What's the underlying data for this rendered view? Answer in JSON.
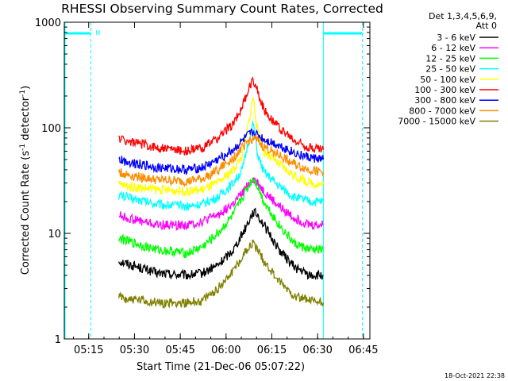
{
  "chart_data": {
    "type": "line",
    "title": "RHESSI Observing Summary Count Rates, Corrected",
    "xlabel": "Start Time (21-Dec-06 05:07:22)",
    "ylabel_main": "Corrected Count Rate (s",
    "ylabel_sup1": "-1",
    "ylabel_mid": " detector",
    "ylabel_sup2": "-1",
    "ylabel_end": ")",
    "yscale": "log",
    "ylim": [
      1,
      1000
    ],
    "xlim": [
      "05:07",
      "06:47"
    ],
    "xlim_minutes": [
      -0.37,
      99.75
    ],
    "x_ticks": [
      {
        "minute": 7.63,
        "label": "05:15"
      },
      {
        "minute": 22.63,
        "label": "05:30"
      },
      {
        "minute": 37.63,
        "label": "05:45"
      },
      {
        "minute": 52.63,
        "label": "06:00"
      },
      {
        "minute": 67.63,
        "label": "06:15"
      },
      {
        "minute": 82.63,
        "label": "06:30"
      },
      {
        "minute": 97.63,
        "label": "06:45"
      }
    ],
    "y_ticks": [
      {
        "value": 1,
        "label": "1"
      },
      {
        "value": 10,
        "label": "10"
      },
      {
        "value": 100,
        "label": "100"
      },
      {
        "value": 1000,
        "label": "1000"
      }
    ],
    "legend_header": [
      "Det 1,3,4,5,6,9,",
      "Att 0"
    ],
    "legend_position": "right",
    "grid": false,
    "night_bar_marker": "N",
    "series": [
      {
        "name": "3 - 6 keV",
        "color": "#000000",
        "x": [
          17.5,
          20,
          30,
          40,
          45,
          50,
          55,
          58,
          60,
          61.5,
          63,
          65,
          70,
          75,
          80,
          84.5
        ],
        "values": [
          5.5,
          5.2,
          4.2,
          4.0,
          4.2,
          5.0,
          7.0,
          10.0,
          13.0,
          16.0,
          15.0,
          12.0,
          7.0,
          4.8,
          4.0,
          4.0
        ]
      },
      {
        "name": "6 - 12 keV",
        "color": "#ff00ff",
        "x": [
          17.5,
          20,
          30,
          40,
          45,
          50,
          55,
          58,
          60,
          61.5,
          63,
          65,
          70,
          75,
          80,
          84.5
        ],
        "values": [
          15,
          14,
          12,
          12,
          13,
          15,
          19,
          24,
          29,
          33,
          30,
          25,
          18,
          14,
          12,
          12
        ]
      },
      {
        "name": "12 - 25 keV",
        "color": "#00ff00",
        "x": [
          17.5,
          20,
          30,
          40,
          45,
          50,
          55,
          58,
          60,
          61.5,
          63,
          65,
          70,
          75,
          80,
          84.5
        ],
        "values": [
          9.0,
          8.5,
          7.0,
          6.5,
          7.5,
          10,
          15,
          22,
          28,
          34,
          28,
          20,
          12,
          8,
          7,
          7
        ]
      },
      {
        "name": "25 - 50 keV",
        "color": "#00ffff",
        "x": [
          17.5,
          20,
          30,
          40,
          45,
          50,
          55,
          58,
          60,
          61.5,
          63,
          65,
          70,
          75,
          80,
          84.5
        ],
        "values": [
          23,
          22,
          19,
          18,
          19,
          22,
          30,
          40,
          75,
          110,
          55,
          38,
          28,
          22,
          20,
          20
        ]
      },
      {
        "name": "50 - 100 keV",
        "color": "#ffff00",
        "x": [
          17.5,
          20,
          30,
          40,
          45,
          50,
          55,
          58,
          60,
          61.5,
          63,
          65,
          70,
          75,
          80,
          84.5
        ],
        "values": [
          29,
          28,
          26,
          25,
          26,
          30,
          40,
          55,
          110,
          200,
          90,
          60,
          45,
          35,
          30,
          29
        ]
      },
      {
        "name": "100 - 300 keV",
        "color": "#ff0000",
        "x": [
          17.5,
          20,
          30,
          40,
          45,
          50,
          55,
          58,
          60,
          61.5,
          63,
          65,
          70,
          75,
          80,
          84.5
        ],
        "values": [
          80,
          75,
          65,
          60,
          65,
          80,
          110,
          160,
          230,
          290,
          220,
          150,
          100,
          75,
          65,
          62
        ]
      },
      {
        "name": "300 - 800 keV",
        "color": "#0000ff",
        "x": [
          17.5,
          20,
          30,
          40,
          45,
          50,
          55,
          58,
          60,
          61.5,
          63,
          65,
          70,
          75,
          80,
          84.5
        ],
        "values": [
          50,
          48,
          42,
          40,
          42,
          50,
          62,
          75,
          85,
          90,
          85,
          78,
          68,
          58,
          52,
          50
        ]
      },
      {
        "name": "800 - 7000 keV",
        "color": "#ff8c00",
        "x": [
          17.5,
          20,
          30,
          40,
          45,
          50,
          55,
          58,
          60,
          61.5,
          63,
          65,
          70,
          75,
          80,
          84.5
        ],
        "values": [
          38,
          36,
          32,
          31,
          33,
          40,
          52,
          65,
          75,
          80,
          75,
          66,
          55,
          45,
          40,
          38
        ]
      },
      {
        "name": "7000 - 15000 keV",
        "color": "#808000",
        "x": [
          17.5,
          20,
          30,
          40,
          45,
          50,
          55,
          58,
          60,
          61.5,
          63,
          65,
          70,
          75,
          80,
          84.5
        ],
        "values": [
          2.5,
          2.4,
          2.2,
          2.2,
          2.3,
          3.0,
          4.5,
          6.0,
          7.5,
          8.0,
          7.0,
          5.5,
          3.5,
          2.6,
          2.3,
          2.2
        ]
      }
    ]
  },
  "footer_timestamp": "18-Oct-2021 22:38"
}
